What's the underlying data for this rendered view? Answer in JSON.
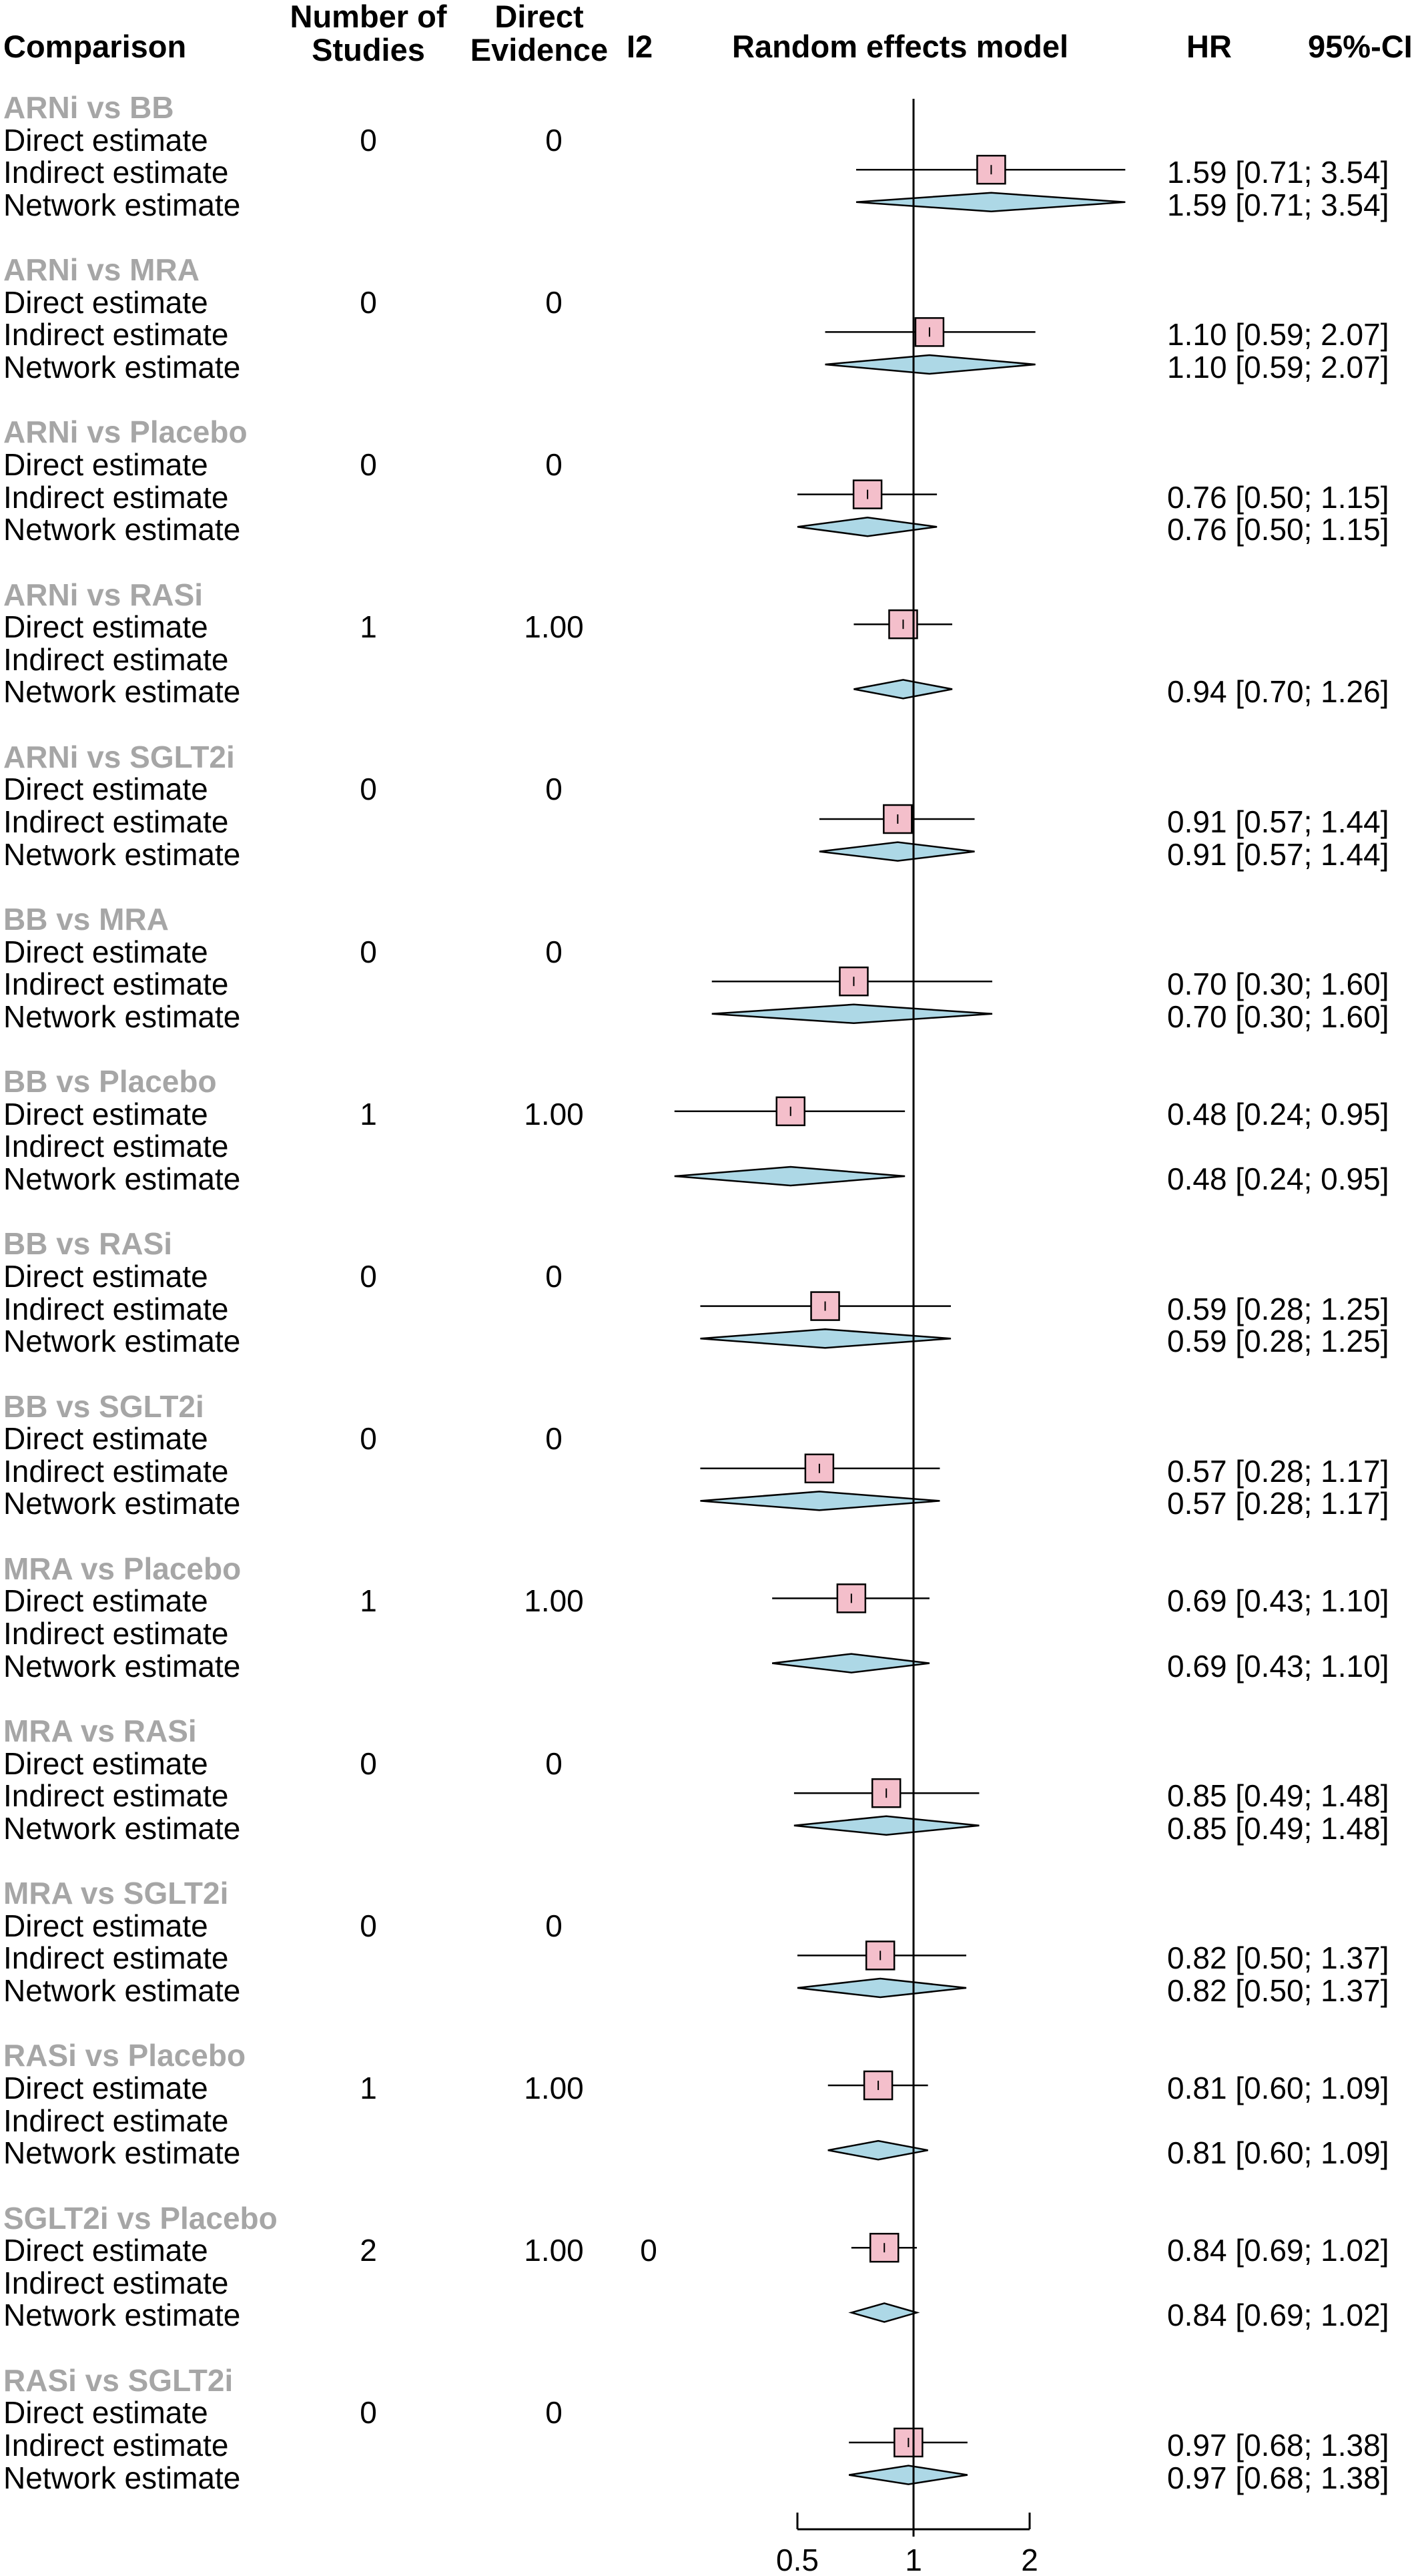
{
  "headers": {
    "comparison": "Comparison",
    "studies_line1": "Number of",
    "studies_line2": "Studies",
    "direct_line1": "Direct",
    "direct_line2": "Evidence",
    "i2": "I2",
    "model": "Random effects model",
    "hr": "HR",
    "ci": "95%-CI"
  },
  "row_labels": {
    "direct": "Direct estimate",
    "indirect": "Indirect estimate",
    "network": "Network estimate"
  },
  "chart_data": {
    "type": "forest",
    "xscale": "log",
    "xlim": [
      0.5,
      2
    ],
    "xticks": [
      "0.5",
      "1",
      "2"
    ],
    "reference_line": 1,
    "colors": {
      "square": "#f4bfcb",
      "diamond": "#add8e6",
      "group_label": "#a6a6a6"
    },
    "comparisons": [
      {
        "name": "ARNi vs BB",
        "studies": "0",
        "direct_evidence": "0",
        "i2": "",
        "direct": null,
        "indirect": {
          "hr": 1.59,
          "lo": 0.71,
          "hi": 3.54,
          "text": "1.59 [0.71; 3.54]"
        },
        "network": {
          "hr": 1.59,
          "lo": 0.71,
          "hi": 3.54,
          "text": "1.59 [0.71; 3.54]"
        }
      },
      {
        "name": "ARNi vs MRA",
        "studies": "0",
        "direct_evidence": "0",
        "i2": "",
        "direct": null,
        "indirect": {
          "hr": 1.1,
          "lo": 0.59,
          "hi": 2.07,
          "text": "1.10 [0.59; 2.07]"
        },
        "network": {
          "hr": 1.1,
          "lo": 0.59,
          "hi": 2.07,
          "text": "1.10 [0.59; 2.07]"
        }
      },
      {
        "name": "ARNi vs Placebo",
        "studies": "0",
        "direct_evidence": "0",
        "i2": "",
        "direct": null,
        "indirect": {
          "hr": 0.76,
          "lo": 0.5,
          "hi": 1.15,
          "text": "0.76 [0.50; 1.15]"
        },
        "network": {
          "hr": 0.76,
          "lo": 0.5,
          "hi": 1.15,
          "text": "0.76 [0.50; 1.15]"
        }
      },
      {
        "name": "ARNi vs RASi",
        "studies": "1",
        "direct_evidence": "1.00",
        "i2": "",
        "direct": {
          "hr": 0.94,
          "lo": 0.7,
          "hi": 1.26,
          "text": ""
        },
        "indirect": null,
        "network": {
          "hr": 0.94,
          "lo": 0.7,
          "hi": 1.26,
          "text": "0.94 [0.70; 1.26]"
        }
      },
      {
        "name": "ARNi vs SGLT2i",
        "studies": "0",
        "direct_evidence": "0",
        "i2": "",
        "direct": null,
        "indirect": {
          "hr": 0.91,
          "lo": 0.57,
          "hi": 1.44,
          "text": "0.91 [0.57; 1.44]"
        },
        "network": {
          "hr": 0.91,
          "lo": 0.57,
          "hi": 1.44,
          "text": "0.91 [0.57; 1.44]"
        }
      },
      {
        "name": "BB vs MRA",
        "studies": "0",
        "direct_evidence": "0",
        "i2": "",
        "direct": null,
        "indirect": {
          "hr": 0.7,
          "lo": 0.3,
          "hi": 1.6,
          "text": "0.70 [0.30; 1.60]"
        },
        "network": {
          "hr": 0.7,
          "lo": 0.3,
          "hi": 1.6,
          "text": "0.70 [0.30; 1.60]"
        }
      },
      {
        "name": "BB vs Placebo",
        "studies": "1",
        "direct_evidence": "1.00",
        "i2": "",
        "direct": {
          "hr": 0.48,
          "lo": 0.24,
          "hi": 0.95,
          "text": "0.48 [0.24; 0.95]"
        },
        "indirect": null,
        "network": {
          "hr": 0.48,
          "lo": 0.24,
          "hi": 0.95,
          "text": "0.48 [0.24; 0.95]"
        }
      },
      {
        "name": "BB vs RASi",
        "studies": "0",
        "direct_evidence": "0",
        "i2": "",
        "direct": null,
        "indirect": {
          "hr": 0.59,
          "lo": 0.28,
          "hi": 1.25,
          "text": "0.59 [0.28; 1.25]"
        },
        "network": {
          "hr": 0.59,
          "lo": 0.28,
          "hi": 1.25,
          "text": "0.59 [0.28; 1.25]"
        }
      },
      {
        "name": "BB vs SGLT2i",
        "studies": "0",
        "direct_evidence": "0",
        "i2": "",
        "direct": null,
        "indirect": {
          "hr": 0.57,
          "lo": 0.28,
          "hi": 1.17,
          "text": "0.57 [0.28; 1.17]"
        },
        "network": {
          "hr": 0.57,
          "lo": 0.28,
          "hi": 1.17,
          "text": "0.57 [0.28; 1.17]"
        }
      },
      {
        "name": "MRA vs Placebo",
        "studies": "1",
        "direct_evidence": "1.00",
        "i2": "",
        "direct": {
          "hr": 0.69,
          "lo": 0.43,
          "hi": 1.1,
          "text": "0.69 [0.43; 1.10]"
        },
        "indirect": null,
        "network": {
          "hr": 0.69,
          "lo": 0.43,
          "hi": 1.1,
          "text": "0.69 [0.43; 1.10]"
        }
      },
      {
        "name": "MRA vs RASi",
        "studies": "0",
        "direct_evidence": "0",
        "i2": "",
        "direct": null,
        "indirect": {
          "hr": 0.85,
          "lo": 0.49,
          "hi": 1.48,
          "text": "0.85 [0.49; 1.48]"
        },
        "network": {
          "hr": 0.85,
          "lo": 0.49,
          "hi": 1.48,
          "text": "0.85 [0.49; 1.48]"
        }
      },
      {
        "name": "MRA vs SGLT2i",
        "studies": "0",
        "direct_evidence": "0",
        "i2": "",
        "direct": null,
        "indirect": {
          "hr": 0.82,
          "lo": 0.5,
          "hi": 1.37,
          "text": "0.82 [0.50; 1.37]"
        },
        "network": {
          "hr": 0.82,
          "lo": 0.5,
          "hi": 1.37,
          "text": "0.82 [0.50; 1.37]"
        }
      },
      {
        "name": "RASi vs Placebo",
        "studies": "1",
        "direct_evidence": "1.00",
        "i2": "",
        "direct": {
          "hr": 0.81,
          "lo": 0.6,
          "hi": 1.09,
          "text": "0.81 [0.60; 1.09]"
        },
        "indirect": null,
        "network": {
          "hr": 0.81,
          "lo": 0.6,
          "hi": 1.09,
          "text": "0.81 [0.60; 1.09]"
        }
      },
      {
        "name": "SGLT2i vs Placebo",
        "studies": "2",
        "direct_evidence": "1.00",
        "i2": "0",
        "direct": {
          "hr": 0.84,
          "lo": 0.69,
          "hi": 1.02,
          "text": "0.84 [0.69; 1.02]"
        },
        "indirect": null,
        "network": {
          "hr": 0.84,
          "lo": 0.69,
          "hi": 1.02,
          "text": "0.84 [0.69; 1.02]"
        }
      },
      {
        "name": "RASi vs SGLT2i",
        "studies": "0",
        "direct_evidence": "0",
        "i2": "",
        "direct": null,
        "indirect": {
          "hr": 0.97,
          "lo": 0.68,
          "hi": 1.38,
          "text": "0.97 [0.68; 1.38]"
        },
        "network": {
          "hr": 0.97,
          "lo": 0.68,
          "hi": 1.38,
          "text": "0.97 [0.68; 1.38]"
        }
      }
    ]
  }
}
